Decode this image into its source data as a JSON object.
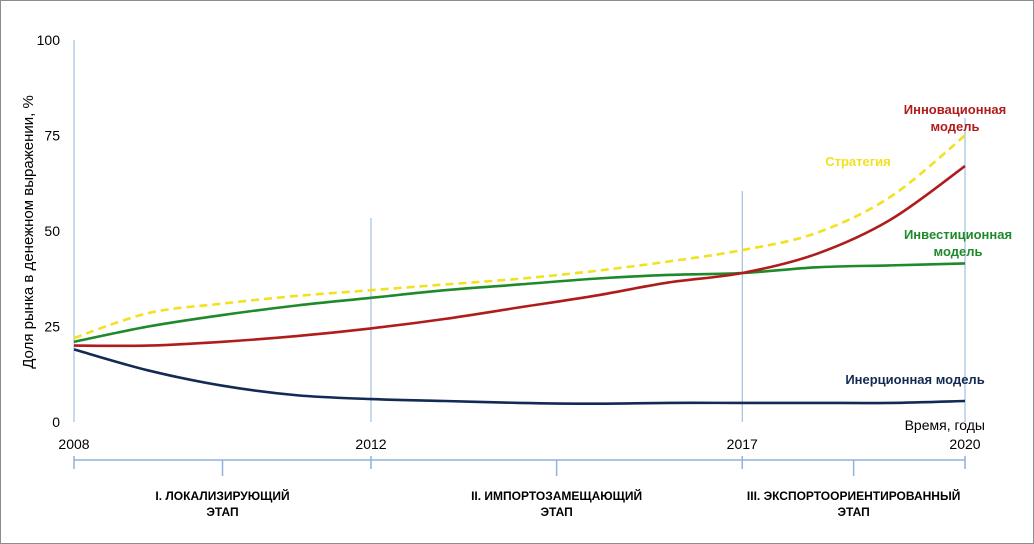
{
  "chart_data": {
    "type": "line",
    "ylabel": "Доля рынка в денежном выражении, %",
    "xlabel": "Время, годы",
    "ylim": [
      0,
      100
    ],
    "yticks": [
      0,
      25,
      50,
      75,
      100
    ],
    "xlim": [
      2008,
      2020
    ],
    "xticks": [
      2008,
      2012,
      2017,
      2020
    ],
    "grid": false,
    "series": [
      {
        "name": "Стратегия",
        "color": "#f2e11e",
        "dashed": true,
        "label_lines": [
          "Стратегия"
        ],
        "x": [
          2008,
          2009,
          2010,
          2011,
          2012,
          2013,
          2014,
          2015,
          2016,
          2017,
          2018,
          2019,
          2020
        ],
        "y": [
          22,
          28.5,
          31,
          33,
          34.5,
          36,
          37.5,
          39.5,
          42,
          45,
          49.5,
          59,
          75
        ]
      },
      {
        "name": "Инвестиционная модель",
        "color": "#1e8a2a",
        "dashed": false,
        "label_lines": [
          "Инвестиционная",
          "модель"
        ],
        "x": [
          2008,
          2009,
          2010,
          2011,
          2012,
          2013,
          2014,
          2015,
          2016,
          2017,
          2018,
          2019,
          2020
        ],
        "y": [
          21,
          25,
          28,
          30.5,
          32.5,
          34.5,
          36,
          37.5,
          38.5,
          39,
          40.5,
          41,
          41.5
        ]
      },
      {
        "name": "Инновационная модель",
        "color": "#b01c1c",
        "dashed": false,
        "label_lines": [
          "Инновационная",
          "модель"
        ],
        "x": [
          2008,
          2009,
          2010,
          2011,
          2012,
          2013,
          2014,
          2015,
          2016,
          2017,
          2018,
          2019,
          2020
        ],
        "y": [
          20,
          20,
          21,
          22.5,
          24.5,
          27,
          30,
          33,
          36.5,
          39,
          44,
          53,
          67
        ]
      },
      {
        "name": "Инерционная модель",
        "color": "#132a55",
        "dashed": false,
        "label_lines": [
          "Инерционная модель"
        ],
        "x": [
          2008,
          2009,
          2010,
          2011,
          2012,
          2013,
          2014,
          2015,
          2016,
          2017,
          2018,
          2019,
          2020
        ],
        "y": [
          19,
          13.5,
          9.5,
          7,
          6,
          5.5,
          5,
          4.8,
          5,
          5,
          5,
          5,
          5.5
        ]
      }
    ],
    "stage_dividers": [
      2012,
      2017
    ],
    "stages": [
      {
        "label_lines": [
          "I.  ЛОКАЛИЗИРУЮЩИЙ",
          "ЭТАП"
        ],
        "from": 2008,
        "to": 2012
      },
      {
        "label_lines": [
          "II.  ИМПОРТОЗАМЕЩАЮЩИЙ",
          "ЭТАП"
        ],
        "from": 2012,
        "to": 2017
      },
      {
        "label_lines": [
          "III.  ЭКСПОРТООРИЕНТИРОВАННЫЙ",
          "ЭТАП"
        ],
        "from": 2017,
        "to": 2020
      }
    ]
  }
}
